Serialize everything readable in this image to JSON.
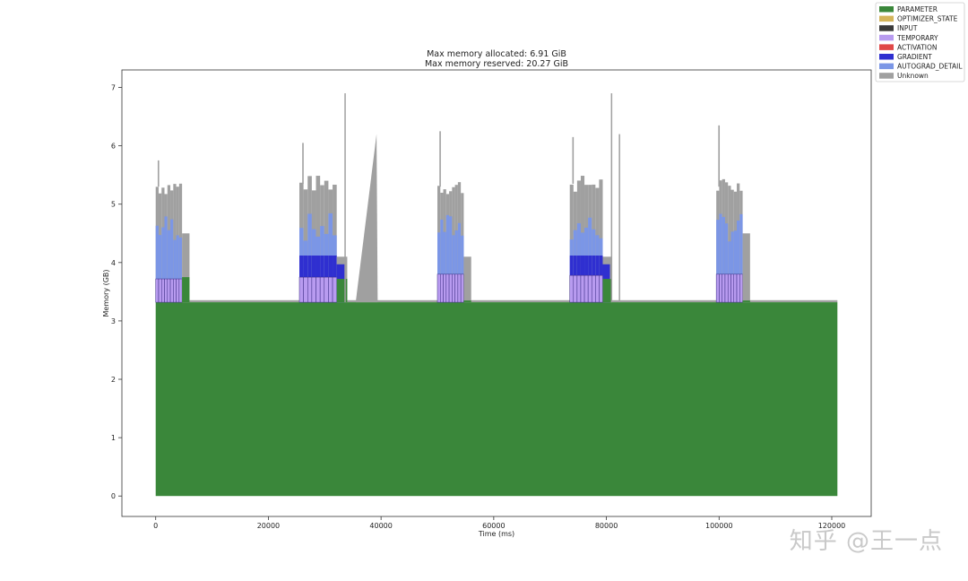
{
  "watermark": "知乎 @王一点",
  "chart_data": {
    "type": "area",
    "title": [
      "Max memory allocated: 6.91 GiB",
      "Max memory reserved: 20.27 GiB"
    ],
    "xlabel": "Time (ms)",
    "ylabel": "Memory (GB)",
    "xlim": [
      -6000,
      127000
    ],
    "ylim": [
      -0.35,
      7.3
    ],
    "xticks": [
      0,
      20000,
      40000,
      60000,
      80000,
      100000,
      120000
    ],
    "yticks": [
      0,
      1,
      2,
      3,
      4,
      5,
      6,
      7
    ],
    "grid": false,
    "legend_position": "outside-top-right",
    "legend": [
      {
        "name": "PARAMETER",
        "color": "#3a873a"
      },
      {
        "name": "OPTIMIZER_STATE",
        "color": "#d4b55a"
      },
      {
        "name": "INPUT",
        "color": "#3a3a3a"
      },
      {
        "name": "TEMPORARY",
        "color": "#b89bf0"
      },
      {
        "name": "ACTIVATION",
        "color": "#e04848"
      },
      {
        "name": "GRADIENT",
        "color": "#2f2fd0"
      },
      {
        "name": "AUTOGRAD_DETAIL",
        "color": "#7b96e6"
      },
      {
        "name": "Unknown",
        "color": "#a0a0a0"
      }
    ],
    "parameter_level": 3.32,
    "time_end": 121000,
    "iterations": [
      {
        "start": 0,
        "end": 6000,
        "temporary_top": 3.72,
        "gradient_top": 3.72,
        "autograd_top": 4.6,
        "unknown_top": 5.3,
        "peak": 5.75,
        "tail_unknown": 4.5,
        "tail_param": 3.75
      },
      {
        "start": 25500,
        "end": 34000,
        "temporary_top": 3.75,
        "gradient_top": 4.12,
        "autograd_top": 4.6,
        "unknown_top": 5.35,
        "peak": 6.05,
        "tail_unknown": 4.1,
        "tail_param": 3.72
      },
      {
        "start": 50000,
        "end": 56000,
        "temporary_top": 3.8,
        "gradient_top": 3.8,
        "autograd_top": 4.6,
        "unknown_top": 5.3,
        "peak": 6.25,
        "tail_unknown": 4.1,
        "tail_param": 3.35
      },
      {
        "start": 73500,
        "end": 81000,
        "temporary_top": 3.78,
        "gradient_top": 4.12,
        "autograd_top": 4.6,
        "unknown_top": 5.35,
        "peak": 6.15,
        "tail_unknown": 4.1,
        "tail_param": 3.72
      },
      {
        "start": 99500,
        "end": 105500,
        "temporary_top": 3.8,
        "gradient_top": 3.8,
        "autograd_top": 4.6,
        "unknown_top": 5.3,
        "peak": 6.35,
        "tail_unknown": 4.5,
        "tail_param": 3.35
      }
    ],
    "spikes": [
      {
        "x": 33500,
        "y": 6.9
      },
      {
        "x": 80800,
        "y": 6.9
      },
      {
        "x": 82200,
        "y": 6.2
      }
    ],
    "wedge": {
      "x_start": 35500,
      "x_peak": 39200,
      "x_end": 39400,
      "peak": 6.2
    }
  }
}
